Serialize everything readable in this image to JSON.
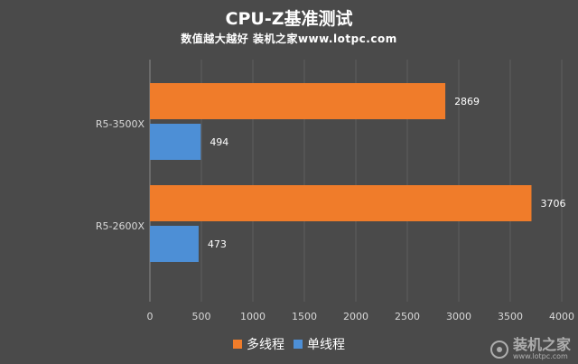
{
  "header": {
    "title": "CPU-Z基准测试",
    "subtitle": "数值越大越好 装机之家www.lotpc.com"
  },
  "watermark": {
    "text": "装机之家",
    "url": "www.lotpc.com"
  },
  "chart_data": {
    "type": "bar",
    "orientation": "horizontal",
    "categories": [
      "R5-3500X",
      "R5-2600X"
    ],
    "series": [
      {
        "name": "多线程",
        "values": [
          2869,
          3706
        ],
        "color": "#f07c2a"
      },
      {
        "name": "单线程",
        "values": [
          494,
          473
        ],
        "color": "#4d8fd6"
      }
    ],
    "xlim": [
      0,
      4000
    ],
    "xticks": [
      0,
      500,
      1000,
      1500,
      2000,
      2500,
      3000,
      3500,
      4000
    ],
    "grid": true,
    "legend": "bottom",
    "data_labels": true
  }
}
